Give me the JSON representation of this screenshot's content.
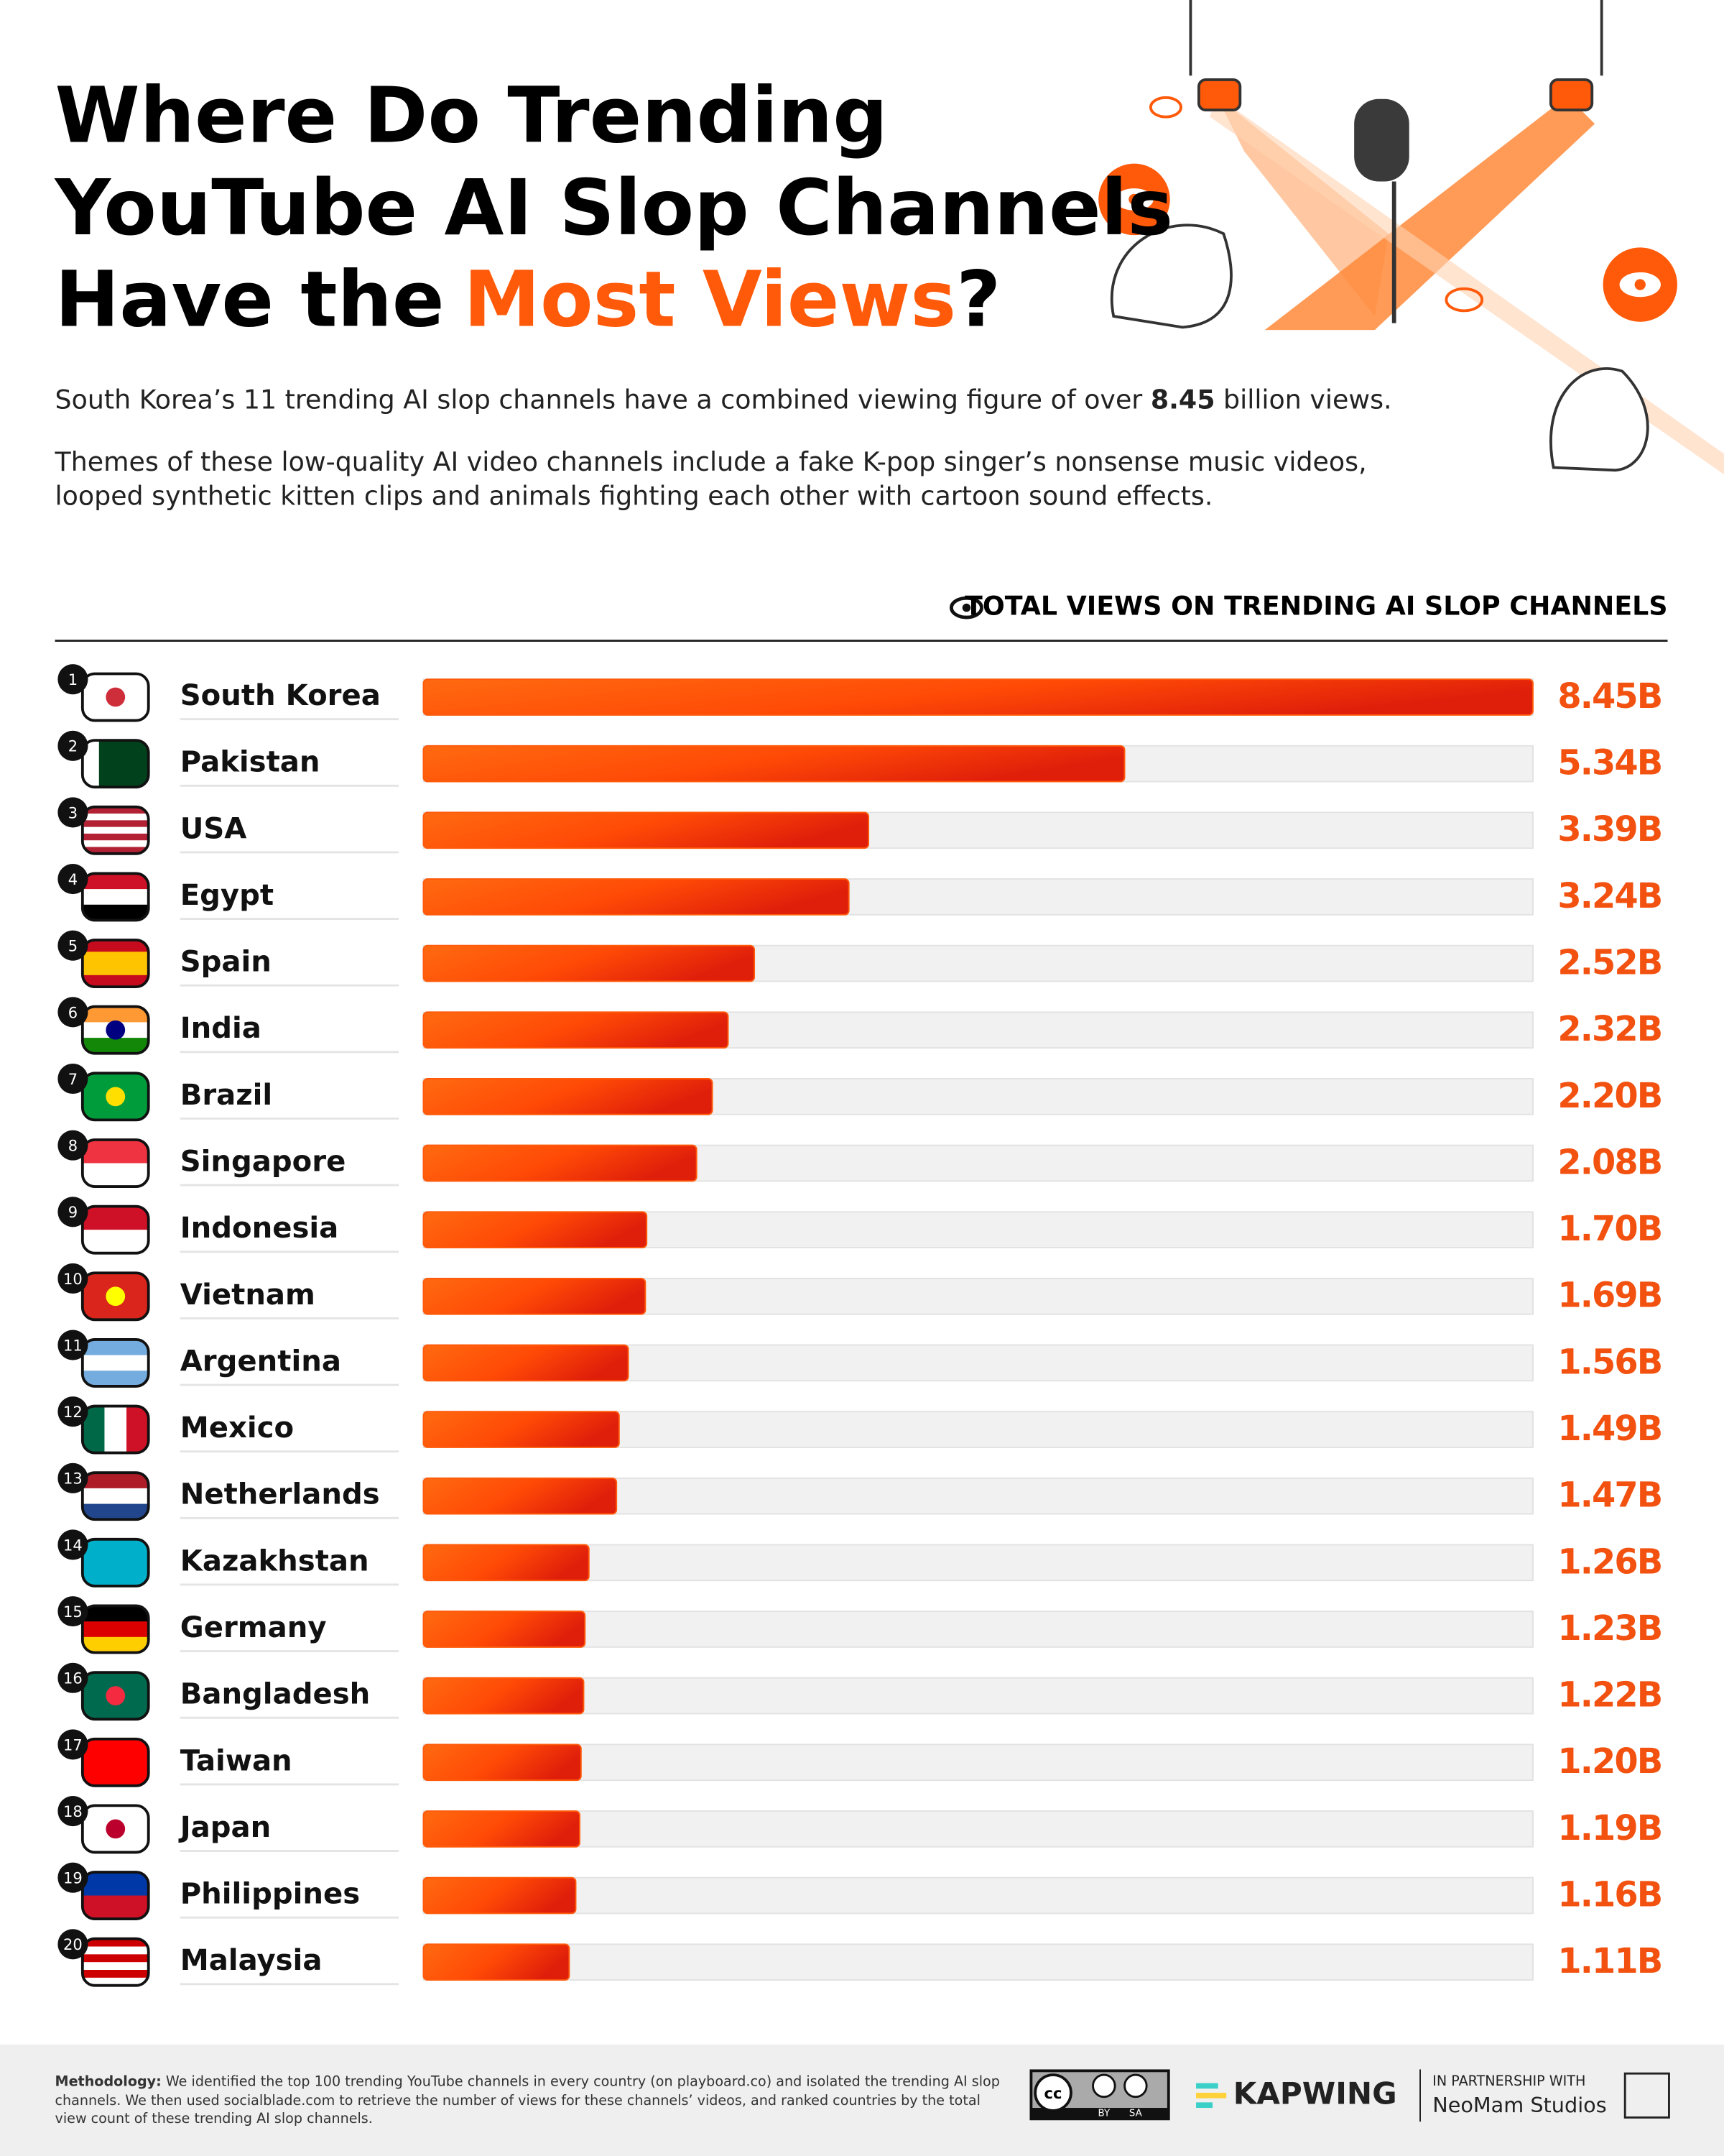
{
  "title_lines": [
    "Where Do Trending",
    "YouTube AI Slop Channels"
  ],
  "title_last_line": [
    "Have the",
    "Most Views",
    "?"
  ],
  "intro": [
    "South Korea’s 11 trending AI slop channels have a combined viewing figure of over ",
    "8.45",
    " billion views."
  ],
  "themes_lines": [
    "Themes of these low-quality AI video channels include a fake K-pop singer’s nonsense music videos,",
    "looped synthetic kitten clips and animals fighting each other with cartoon sound effects."
  ],
  "chart_data": {
    "type": "bar",
    "orientation": "horizontal",
    "header": "TOTAL VIEWS ON TRENDING AI SLOP CHANNELS",
    "ranks": [
      1,
      2,
      3,
      4,
      5,
      6,
      7,
      8,
      9,
      10,
      11,
      12,
      13,
      14,
      15,
      16,
      17,
      18,
      19,
      20
    ],
    "categories": [
      "South Korea",
      "Pakistan",
      "USA",
      "Egypt",
      "Spain",
      "India",
      "Brazil",
      "Singapore",
      "Indonesia",
      "Vietnam",
      "Argentina",
      "Mexico",
      "Netherlands",
      "Kazakhstan",
      "Germany",
      "Bangladesh",
      "Taiwan",
      "Japan",
      "Philippines",
      "Malaysia"
    ],
    "values": [
      8.45,
      5.34,
      3.39,
      3.24,
      2.52,
      2.32,
      2.2,
      2.08,
      1.7,
      1.69,
      1.56,
      1.49,
      1.47,
      1.26,
      1.23,
      1.22,
      1.2,
      1.19,
      1.16,
      1.11
    ],
    "value_labels": [
      "8.45B",
      "5.34B",
      "3.39B",
      "3.24B",
      "2.52B",
      "2.32B",
      "2.20B",
      "2.08B",
      "1.70B",
      "1.69B",
      "1.56B",
      "1.49B",
      "1.47B",
      "1.26B",
      "1.23B",
      "1.22B",
      "1.20B",
      "1.19B",
      "1.16B",
      "1.11B"
    ],
    "xlim": [
      0,
      8.45
    ],
    "color": "#ff5a0a",
    "value_label_color": "#f2510f"
  },
  "footer": {
    "methodology_label": "Methodology:",
    "methodology_lines": [
      " We identified the top 100 trending YouTube channels in every country (on playboard.co) and isolated the trending AI slop",
      "channels. We then used socialblade.com to retrieve the number of views for these channels’ videos, and ranked countries by the total",
      "view count of these trending AI slop channels."
    ],
    "license": [
      "cc",
      "BY",
      "SA"
    ],
    "brand": "KAPWING",
    "partner_label": "IN PARTNERSHIP WITH",
    "partner": "NeoMam Studios"
  }
}
